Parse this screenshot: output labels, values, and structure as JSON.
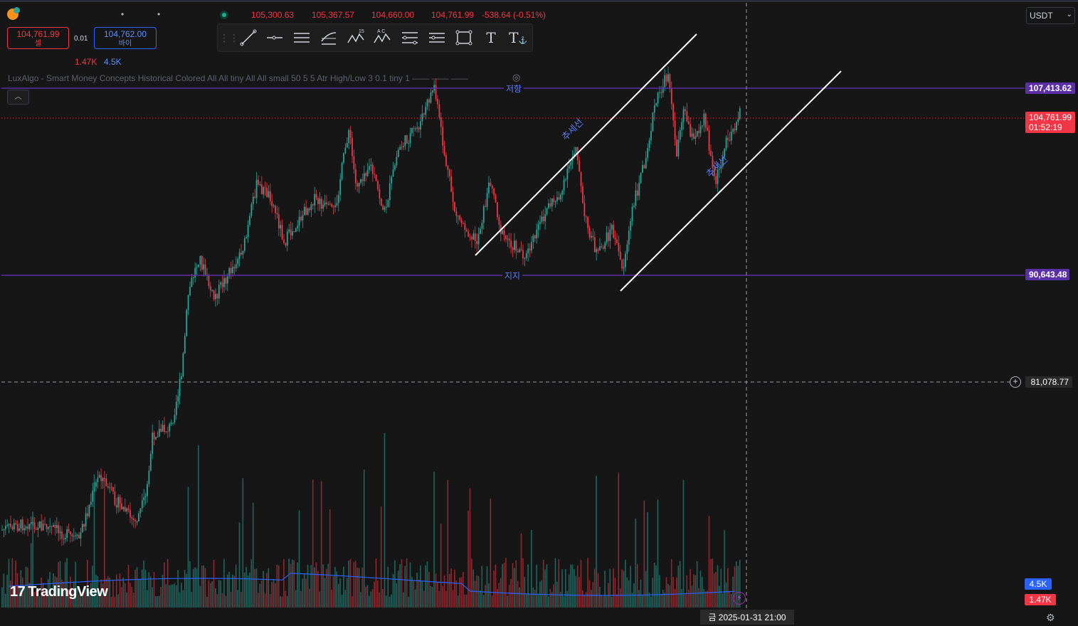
{
  "header": {
    "ohlc": [
      "105,300.63",
      "105,367.57",
      "104,660.00",
      "104,761.99",
      "-538.64 (-0.51%)"
    ]
  },
  "order_panel": {
    "sell_price": "104,761.99",
    "sell_label": "셀",
    "spread": "0.01",
    "buy_price": "104,762.00",
    "buy_label": "바이",
    "volume_sell": "1.47K",
    "volume_buy": "4.5K"
  },
  "indicator": {
    "text": "LuxAlgo - Smart Money Concepts Historical Colored All All tiny All All small 50 5 5 Atr High/Low 3 0.1 tiny 1 —— —— ——"
  },
  "currency": {
    "selected": "USDT"
  },
  "price_axis": {
    "resistance": "107,413.62",
    "support": "90,643.48",
    "last_price": "104,761.99",
    "countdown": "01:52:19",
    "crosshair": "81,078.77"
  },
  "volume_axis": {
    "buy": "4.5K",
    "sell": "1.47K"
  },
  "time_axis": {
    "crosshair_date": "금 2025-01-31   21:00"
  },
  "annotations": {
    "resistance_label": "저항",
    "support_label": "지지",
    "trendline_label_1": "추세선",
    "trendline_label_2": "추세선"
  },
  "brand": {
    "logo_text": "TradingView"
  },
  "colors": {
    "bg": "#161616",
    "up": "#26a69a",
    "down": "#f23645",
    "level": "#5b2fa6",
    "volume_ma": "#2962ff"
  },
  "price_scale": {
    "min": 60000,
    "max": 115000
  },
  "drawing_tools": [
    "cross-line-icon",
    "trend-line-icon",
    "horizontal-ray-icon",
    "parallel-channel-icon",
    "fib-icon",
    "xabcd-pattern-icon",
    "abcd-pattern-icon",
    "long-position-icon",
    "projection-icon",
    "rectangle-icon",
    "text-icon",
    "anchored-text-icon"
  ]
}
